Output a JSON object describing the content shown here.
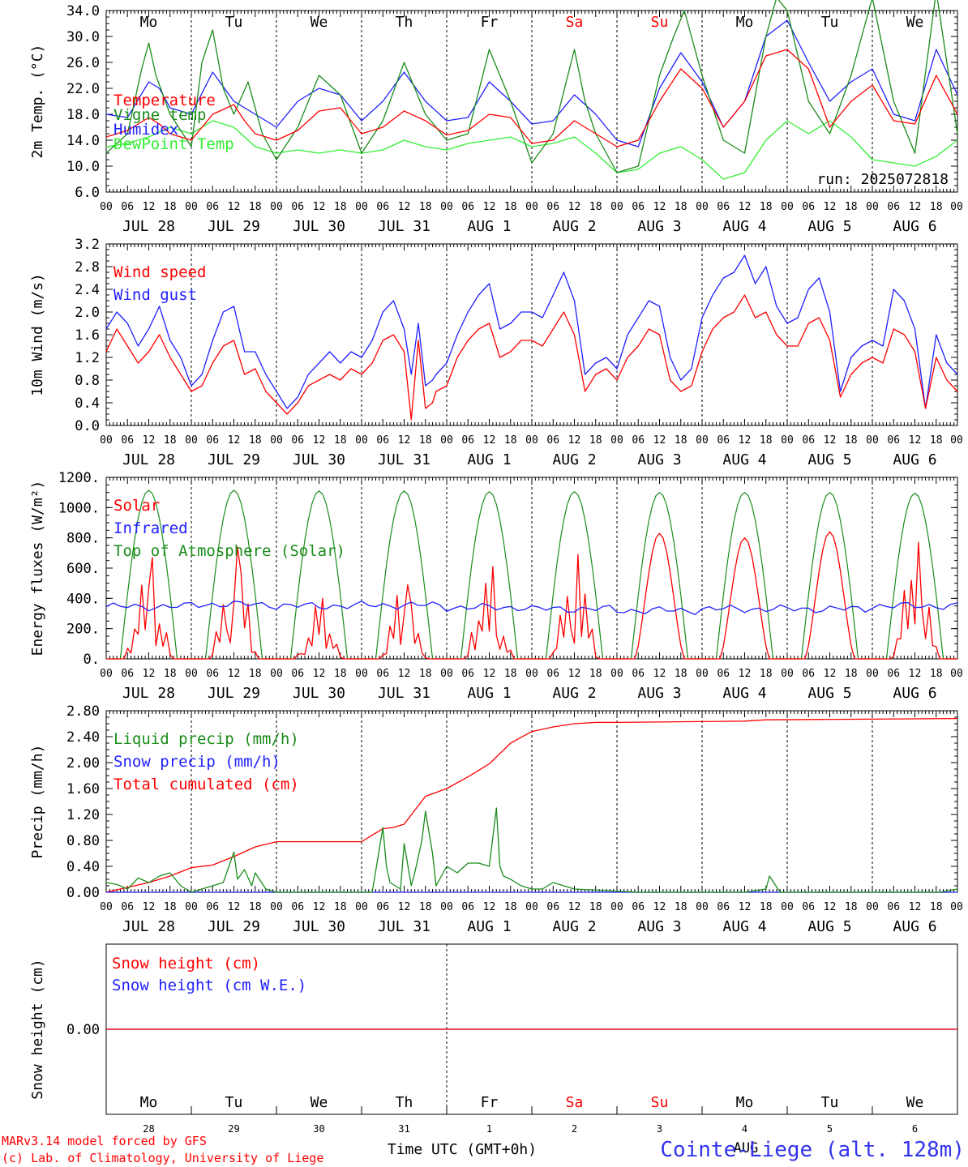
{
  "colors": {
    "red": "#ff0000",
    "green": "#1a8c1a",
    "blue": "#2020ff",
    "lightgreen": "#33ee33",
    "weekend": "#ff0000",
    "location": "#3333ee"
  },
  "days": {
    "weekday_labels": [
      "Mo",
      "Tu",
      "We",
      "Th",
      "Fr",
      "Sa",
      "Su",
      "Mo",
      "Tu",
      "We"
    ],
    "weekend_flags": [
      false,
      false,
      false,
      false,
      false,
      true,
      true,
      false,
      false,
      false
    ],
    "date_labels": [
      "JUL 28",
      "JUL 29",
      "JUL 30",
      "JUL 31",
      "AUG  1",
      "AUG  2",
      "AUG  3",
      "AUG  4",
      "AUG  5",
      "AUG  6"
    ],
    "day_numbers": [
      "28",
      "29",
      "30",
      "31",
      "1",
      "2",
      "3",
      "4",
      "5",
      "6"
    ],
    "hour_labels": [
      "00",
      "06",
      "12",
      "18"
    ],
    "end_hour_label": "00"
  },
  "run_label": "run: 2025072818",
  "footer": {
    "model": "MARv3.14 model forced by GFS",
    "copyright": "(c) Lab. of Climatology, University of Liege",
    "xlabel": "Time UTC (GMT+0h)",
    "month": "AUG",
    "location": "Cointe-Liege (alt. 128m)"
  },
  "chart_data": [
    {
      "type": "line",
      "ylabel": "2m Temp. (°C)",
      "ylim": [
        6,
        34
      ],
      "yticks": [
        "6.0",
        "10.0",
        "14.0",
        "18.0",
        "22.0",
        "26.0",
        "30.0",
        "34.0"
      ],
      "x_unit": "hours since 2025-07-28 00 UTC",
      "series": [
        {
          "name": "Temperature",
          "color": "red",
          "x": [
            0,
            6,
            12,
            15,
            18,
            24,
            30,
            36,
            39,
            42,
            48,
            54,
            60,
            66,
            72,
            78,
            84,
            90,
            96,
            102,
            108,
            114,
            120,
            126,
            132,
            135,
            138,
            144,
            150,
            156,
            162,
            168,
            174,
            180,
            186,
            192,
            198,
            204,
            210,
            216,
            222,
            228,
            234,
            240
          ],
          "values": [
            14.5,
            15.5,
            17.5,
            16.5,
            15,
            14,
            18,
            19.5,
            17,
            15,
            14,
            15.5,
            18.5,
            19,
            15,
            16,
            18.5,
            17,
            14.8,
            15.5,
            18,
            17.5,
            13.5,
            14,
            17,
            16,
            15,
            13,
            14,
            20,
            25,
            22,
            16,
            20,
            27,
            28,
            25,
            16,
            20,
            22.5,
            17,
            16.5,
            24,
            18
          ]
        },
        {
          "name": "Vigne temp",
          "color": "green",
          "x": [
            0,
            6,
            10,
            12,
            14,
            18,
            24,
            27,
            30,
            33,
            36,
            40,
            44,
            48,
            54,
            60,
            66,
            72,
            78,
            84,
            90,
            96,
            102,
            108,
            114,
            120,
            126,
            132,
            135,
            138,
            144,
            150,
            156,
            160,
            163,
            168,
            174,
            180,
            186,
            189,
            192,
            198,
            204,
            210,
            216,
            222,
            228,
            234,
            240
          ],
          "values": [
            12,
            15,
            25,
            29,
            24,
            18,
            13,
            26,
            31,
            22,
            18,
            23,
            15,
            11,
            16,
            24,
            21,
            12,
            17,
            26,
            18,
            14,
            15,
            28,
            20,
            10.5,
            15,
            28,
            20,
            15,
            9,
            10,
            24,
            30,
            34,
            24,
            14,
            12,
            30,
            36,
            34,
            20,
            15,
            24,
            36,
            20,
            12,
            37,
            15
          ]
        },
        {
          "name": "Humidex",
          "color": "blue",
          "x": [
            0,
            6,
            12,
            15,
            18,
            24,
            30,
            36,
            42,
            48,
            54,
            60,
            66,
            72,
            78,
            84,
            90,
            96,
            102,
            108,
            114,
            120,
            126,
            132,
            138,
            144,
            150,
            156,
            162,
            168,
            174,
            180,
            186,
            192,
            198,
            204,
            210,
            216,
            222,
            228,
            234,
            240
          ],
          "values": [
            18,
            17.5,
            23,
            22,
            19,
            18,
            24.5,
            20,
            18,
            16,
            20,
            22,
            21,
            17,
            20,
            24.5,
            20,
            17,
            17.5,
            23,
            20,
            16.5,
            17,
            21,
            18,
            14,
            13,
            22,
            27.5,
            23,
            16,
            20,
            30,
            32.5,
            26,
            20,
            23,
            25,
            18,
            17,
            28,
            21
          ]
        },
        {
          "name": "DewPoint Temp",
          "color": "lightgreen",
          "x": [
            0,
            6,
            12,
            18,
            24,
            30,
            36,
            42,
            48,
            54,
            60,
            66,
            72,
            78,
            84,
            90,
            96,
            102,
            108,
            114,
            120,
            126,
            132,
            138,
            144,
            150,
            156,
            162,
            168,
            174,
            180,
            186,
            192,
            198,
            204,
            210,
            216,
            222,
            228,
            234,
            240
          ],
          "values": [
            13,
            13.5,
            14.5,
            16,
            15,
            17,
            16,
            13,
            12,
            12.5,
            12,
            12.5,
            12,
            12.5,
            14,
            13,
            12.5,
            13.5,
            14,
            14.5,
            13,
            13.5,
            14.5,
            12,
            9,
            9.5,
            12,
            13,
            11,
            8,
            9,
            14,
            17,
            15,
            17,
            14.5,
            11,
            10.5,
            10,
            11.5,
            14
          ]
        }
      ]
    },
    {
      "type": "line",
      "ylabel": "10m Wind (m/s)",
      "ylim": [
        0,
        3.2
      ],
      "yticks": [
        "0.0",
        "0.4",
        "0.8",
        "1.2",
        "1.6",
        "2.0",
        "2.4",
        "2.8",
        "3.2"
      ],
      "x_unit": "hours since 2025-07-28 00 UTC",
      "series": [
        {
          "name": "Wind speed",
          "color": "red",
          "x": [
            0,
            3,
            6,
            9,
            12,
            15,
            18,
            21,
            24,
            27,
            30,
            33,
            36,
            39,
            42,
            45,
            48,
            51,
            54,
            57,
            60,
            63,
            66,
            69,
            72,
            75,
            78,
            81,
            84,
            86,
            88,
            90,
            92,
            93,
            96,
            99,
            102,
            105,
            108,
            111,
            114,
            117,
            120,
            123,
            126,
            129,
            132,
            135,
            138,
            141,
            144,
            147,
            150,
            153,
            156,
            159,
            162,
            165,
            168,
            171,
            174,
            177,
            180,
            183,
            186,
            189,
            192,
            195,
            198,
            201,
            204,
            207,
            210,
            213,
            216,
            219,
            222,
            225,
            228,
            231,
            234,
            237,
            240
          ],
          "values": [
            1.3,
            1.7,
            1.4,
            1.1,
            1.3,
            1.6,
            1.2,
            0.9,
            0.6,
            0.7,
            1.1,
            1.4,
            1.5,
            0.9,
            1.0,
            0.6,
            0.4,
            0.2,
            0.4,
            0.7,
            0.8,
            0.9,
            0.8,
            1.0,
            0.9,
            1.1,
            1.5,
            1.6,
            1.3,
            0.1,
            1.5,
            0.3,
            0.4,
            0.6,
            0.7,
            1.2,
            1.5,
            1.7,
            1.8,
            1.2,
            1.3,
            1.5,
            1.5,
            1.4,
            1.7,
            2.0,
            1.6,
            0.6,
            0.9,
            1.0,
            0.8,
            1.2,
            1.4,
            1.7,
            1.6,
            0.8,
            0.6,
            0.7,
            1.3,
            1.7,
            1.9,
            2.0,
            2.3,
            1.9,
            2.0,
            1.6,
            1.4,
            1.4,
            1.8,
            1.9,
            1.5,
            0.5,
            0.9,
            1.1,
            1.2,
            1.1,
            1.7,
            1.6,
            1.3,
            0.3,
            1.2,
            0.8,
            0.6
          ]
        },
        {
          "name": "Wind gust",
          "color": "blue",
          "x": [
            0,
            3,
            6,
            9,
            12,
            15,
            18,
            21,
            24,
            27,
            30,
            33,
            36,
            39,
            42,
            45,
            48,
            51,
            54,
            57,
            60,
            63,
            66,
            69,
            72,
            75,
            78,
            81,
            84,
            86,
            88,
            90,
            92,
            93,
            96,
            99,
            102,
            105,
            108,
            111,
            114,
            117,
            120,
            123,
            126,
            129,
            132,
            135,
            138,
            141,
            144,
            147,
            150,
            153,
            156,
            159,
            162,
            165,
            168,
            171,
            174,
            177,
            180,
            183,
            186,
            189,
            192,
            195,
            198,
            201,
            204,
            207,
            210,
            213,
            216,
            219,
            222,
            225,
            228,
            231,
            234,
            237,
            240
          ],
          "values": [
            1.7,
            2.0,
            1.8,
            1.4,
            1.7,
            2.1,
            1.5,
            1.2,
            0.7,
            0.9,
            1.5,
            2.0,
            2.1,
            1.3,
            1.3,
            0.9,
            0.6,
            0.3,
            0.5,
            0.9,
            1.1,
            1.3,
            1.1,
            1.3,
            1.2,
            1.5,
            2.0,
            2.2,
            1.7,
            0.9,
            1.8,
            0.7,
            0.8,
            0.9,
            1.1,
            1.6,
            2.0,
            2.3,
            2.5,
            1.7,
            1.8,
            2.0,
            2.0,
            1.9,
            2.3,
            2.7,
            2.2,
            0.9,
            1.1,
            1.2,
            1.0,
            1.6,
            1.9,
            2.2,
            2.1,
            1.2,
            0.8,
            1.0,
            1.9,
            2.3,
            2.6,
            2.7,
            3.0,
            2.5,
            2.8,
            2.1,
            1.8,
            1.9,
            2.4,
            2.6,
            2.0,
            0.6,
            1.2,
            1.4,
            1.5,
            1.4,
            2.4,
            2.2,
            1.7,
            0.3,
            1.6,
            1.1,
            0.9
          ]
        }
      ]
    },
    {
      "type": "line",
      "ylabel": "Energy fluxes (W/m²)",
      "ylim": [
        0,
        1200
      ],
      "yticks": [
        "0.",
        "200.",
        "400.",
        "600.",
        "800.",
        "1000.",
        "1200."
      ],
      "x_unit": "hours since 2025-07-28 00 UTC",
      "series": [
        {
          "name": "Solar",
          "color": "red",
          "daily_peaks": [
            670,
            740,
            400,
            490,
            610,
            690,
            830,
            800,
            840,
            770
          ],
          "daily_shape": "noisy"
        },
        {
          "name": "Infrared",
          "color": "blue",
          "daily_values": [
            345,
            360,
            350,
            355,
            340,
            330,
            320,
            330,
            330,
            350
          ],
          "values_range": [
            280,
            400
          ]
        },
        {
          "name": "Top of Atmosphere (Solar)",
          "color": "green",
          "daily_peaks": [
            1115,
            1115,
            1110,
            1110,
            1105,
            1105,
            1100,
            1100,
            1100,
            1095
          ],
          "sunrise_hour": 4,
          "sunset_hour": 20
        }
      ]
    },
    {
      "type": "line",
      "ylabel": "Precip (mm/h)",
      "ylim": [
        0,
        2.8
      ],
      "yticks": [
        "0.00",
        "0.40",
        "0.80",
        "1.20",
        "1.60",
        "2.00",
        "2.40",
        "2.80"
      ],
      "x_unit": "hours since 2025-07-28 00 UTC",
      "series": [
        {
          "name": "Liquid precip (mm/h)",
          "color": "green",
          "x": [
            0,
            3,
            6,
            9,
            12,
            15,
            18,
            21,
            24,
            30,
            33,
            36,
            37,
            39,
            41,
            42,
            45,
            48,
            60,
            75,
            78,
            79,
            80,
            83,
            84,
            86,
            87,
            89,
            90,
            92,
            93,
            96,
            99,
            102,
            105,
            108,
            110,
            111,
            112,
            114,
            117,
            120,
            123,
            126,
            132,
            150,
            180,
            186,
            187,
            190,
            235,
            240
          ],
          "values": [
            0.15,
            0.12,
            0.05,
            0.22,
            0.15,
            0.25,
            0.3,
            0.1,
            0,
            0.1,
            0.15,
            0.62,
            0.2,
            0.35,
            0.1,
            0.3,
            0.05,
            0,
            0,
            0,
            1.0,
            0.4,
            0.15,
            0.05,
            0.75,
            0.1,
            0.3,
            0.8,
            1.25,
            0.6,
            0.1,
            0.4,
            0.3,
            0.45,
            0.45,
            0.4,
            1.3,
            0.4,
            0.25,
            0.2,
            0.1,
            0.05,
            0.05,
            0.15,
            0.05,
            0,
            0,
            0.05,
            0.25,
            0,
            0,
            0.05
          ]
        },
        {
          "name": "Snow precip (mm/h)",
          "color": "blue",
          "x": [
            0,
            240
          ],
          "values": [
            0,
            0
          ]
        },
        {
          "name": "Total cumulated (cm)",
          "color": "red",
          "x": [
            0,
            12,
            18,
            24,
            30,
            36,
            42,
            48,
            60,
            72,
            78,
            81,
            84,
            90,
            96,
            102,
            108,
            114,
            120,
            126,
            132,
            138,
            144,
            180,
            186,
            240
          ],
          "values": [
            0,
            0.15,
            0.25,
            0.38,
            0.42,
            0.55,
            0.7,
            0.78,
            0.78,
            0.78,
            0.98,
            1.0,
            1.05,
            1.48,
            1.6,
            1.78,
            1.98,
            2.3,
            2.48,
            2.55,
            2.6,
            2.62,
            2.62,
            2.64,
            2.66,
            2.68
          ]
        }
      ]
    },
    {
      "type": "line",
      "ylabel": "Snow height (cm)",
      "ylim": [
        -1,
        1
      ],
      "yticks": [
        "0.00"
      ],
      "x_unit": "hours since 2025-07-28 00 UTC",
      "series": [
        {
          "name": "Snow height (cm)",
          "color": "red",
          "x": [
            0,
            240
          ],
          "values": [
            0,
            0
          ]
        },
        {
          "name": "Snow height (cm W.E.)",
          "color": "blue",
          "x": [
            0,
            240
          ],
          "values": [
            0,
            0
          ]
        }
      ]
    }
  ]
}
